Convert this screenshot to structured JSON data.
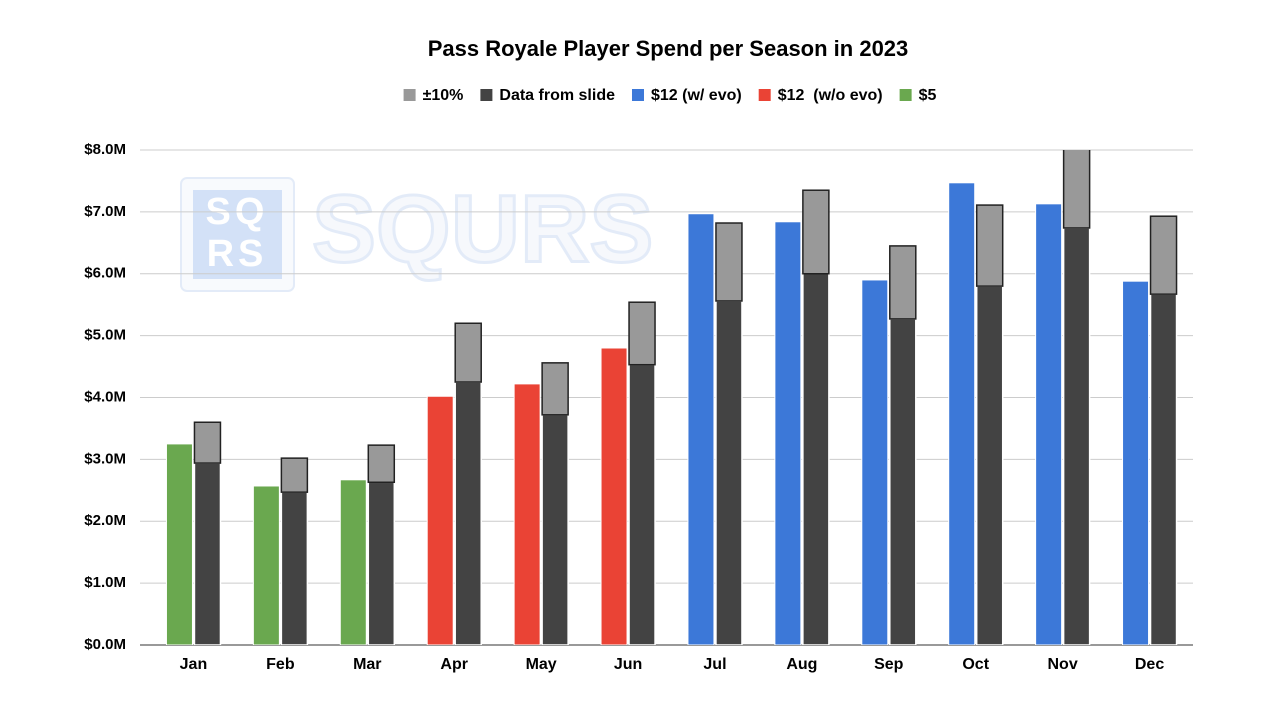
{
  "chart_data": {
    "type": "bar",
    "title": "Pass Royale Player Spend per Season in 2023",
    "watermark": "SQURS",
    "watermark_logo": [
      "SQ",
      "RS"
    ],
    "categories": [
      "Jan",
      "Feb",
      "Mar",
      "Apr",
      "May",
      "Jun",
      "Jul",
      "Aug",
      "Sep",
      "Oct",
      "Nov",
      "Dec"
    ],
    "series": [
      {
        "name": "±10%",
        "color": "#999999",
        "values": [
          660000,
          550000,
          600000,
          950000,
          840000,
          1010000,
          1260000,
          1350000,
          1180000,
          1310000,
          1490000,
          1260000
        ]
      },
      {
        "name": "Data from slide",
        "color": "#434343",
        "values": [
          2940000,
          2470000,
          2630000,
          4250000,
          3720000,
          4530000,
          5560000,
          6000000,
          5270000,
          5800000,
          6740000,
          5670000
        ]
      },
      {
        "name": "$12 (w/ evo)",
        "color": "#3c78d8",
        "values": [
          null,
          null,
          null,
          null,
          null,
          null,
          6970000,
          6840000,
          5900000,
          7470000,
          7130000,
          5880000
        ]
      },
      {
        "name": "$12  (w/o evo)",
        "color": "#ea4335",
        "values": [
          null,
          null,
          null,
          4020000,
          4220000,
          4800000,
          null,
          null,
          null,
          null,
          null,
          null
        ]
      },
      {
        "name": "$5",
        "color": "#6aa84f",
        "values": [
          3250000,
          2570000,
          2670000,
          null,
          null,
          null,
          null,
          null,
          null,
          null,
          null,
          null
        ]
      }
    ],
    "ylim": [
      0,
      8000000
    ],
    "yticks": [
      {
        "value": 0,
        "label": "$0.0M"
      },
      {
        "value": 1000000,
        "label": "$1.0M"
      },
      {
        "value": 2000000,
        "label": "$2.0M"
      },
      {
        "value": 3000000,
        "label": "$3.0M"
      },
      {
        "value": 4000000,
        "label": "$4.0M"
      },
      {
        "value": 5000000,
        "label": "$5.0M"
      },
      {
        "value": 6000000,
        "label": "$6.0M"
      },
      {
        "value": 7000000,
        "label": "$7.0M"
      },
      {
        "value": 8000000,
        "label": "$8.0M"
      }
    ],
    "grid": true
  }
}
